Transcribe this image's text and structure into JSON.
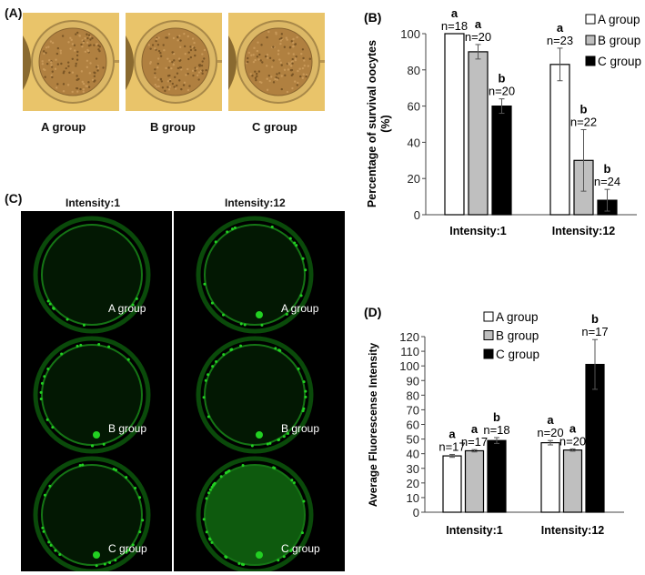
{
  "panel_a": {
    "label": "(A)",
    "groups": [
      "A group",
      "B group",
      "C group"
    ]
  },
  "panel_c": {
    "label": "(C)",
    "columns": [
      "Intensity:1",
      "Intensity:12"
    ],
    "rows": [
      "A group",
      "B group",
      "C group"
    ],
    "fluorescence_color": "#22d022"
  },
  "chart_data": [
    {
      "panel_label": "(B)",
      "type": "bar",
      "categories": [
        "Intensity:1",
        "Intensity:12"
      ],
      "ylabel": "Percentage of survival oocytes (%)",
      "ylim": [
        0,
        100
      ],
      "yticks": [
        0,
        20,
        40,
        60,
        80,
        100
      ],
      "legend_position": "top-right",
      "series": [
        {
          "name": "A group",
          "color": "#ffffff",
          "values": [
            100,
            83
          ],
          "errors": [
            0,
            9
          ],
          "n_labels": [
            "n=18",
            "n=23"
          ],
          "sig": [
            "a",
            "a"
          ]
        },
        {
          "name": "B group",
          "color": "#bfbfbf",
          "values": [
            90,
            30
          ],
          "errors": [
            4,
            17
          ],
          "n_labels": [
            "n=20",
            "n=22"
          ],
          "sig": [
            "a",
            "b"
          ]
        },
        {
          "name": "C group",
          "color": "#000000",
          "values": [
            60,
            8
          ],
          "errors": [
            4,
            6
          ],
          "n_labels": [
            "n=20",
            "n=24"
          ],
          "sig": [
            "b",
            "b"
          ]
        }
      ]
    },
    {
      "panel_label": "(D)",
      "type": "bar",
      "categories": [
        "Intensity:1",
        "Intensity:12"
      ],
      "ylabel": "Average Fluorescense Intensity",
      "ylim": [
        0,
        120
      ],
      "yticks": [
        0,
        10,
        20,
        30,
        40,
        50,
        60,
        70,
        80,
        90,
        100,
        110,
        120
      ],
      "legend_position": "top-center",
      "series": [
        {
          "name": "A group",
          "color": "#ffffff",
          "values": [
            38.5,
            47.5
          ],
          "errors": [
            1,
            1.5
          ],
          "n_labels": [
            "n=17",
            "n=20"
          ],
          "sig": [
            "a",
            "a"
          ]
        },
        {
          "name": "B group",
          "color": "#bfbfbf",
          "values": [
            42,
            42.5
          ],
          "errors": [
            0.8,
            0.8
          ],
          "n_labels": [
            "n=17",
            "n=20"
          ],
          "sig": [
            "a",
            "a"
          ]
        },
        {
          "name": "C group",
          "color": "#000000",
          "values": [
            49,
            101
          ],
          "errors": [
            2,
            17
          ],
          "n_labels": [
            "n=18",
            "n=17"
          ],
          "sig": [
            "b",
            "b"
          ]
        }
      ]
    }
  ]
}
